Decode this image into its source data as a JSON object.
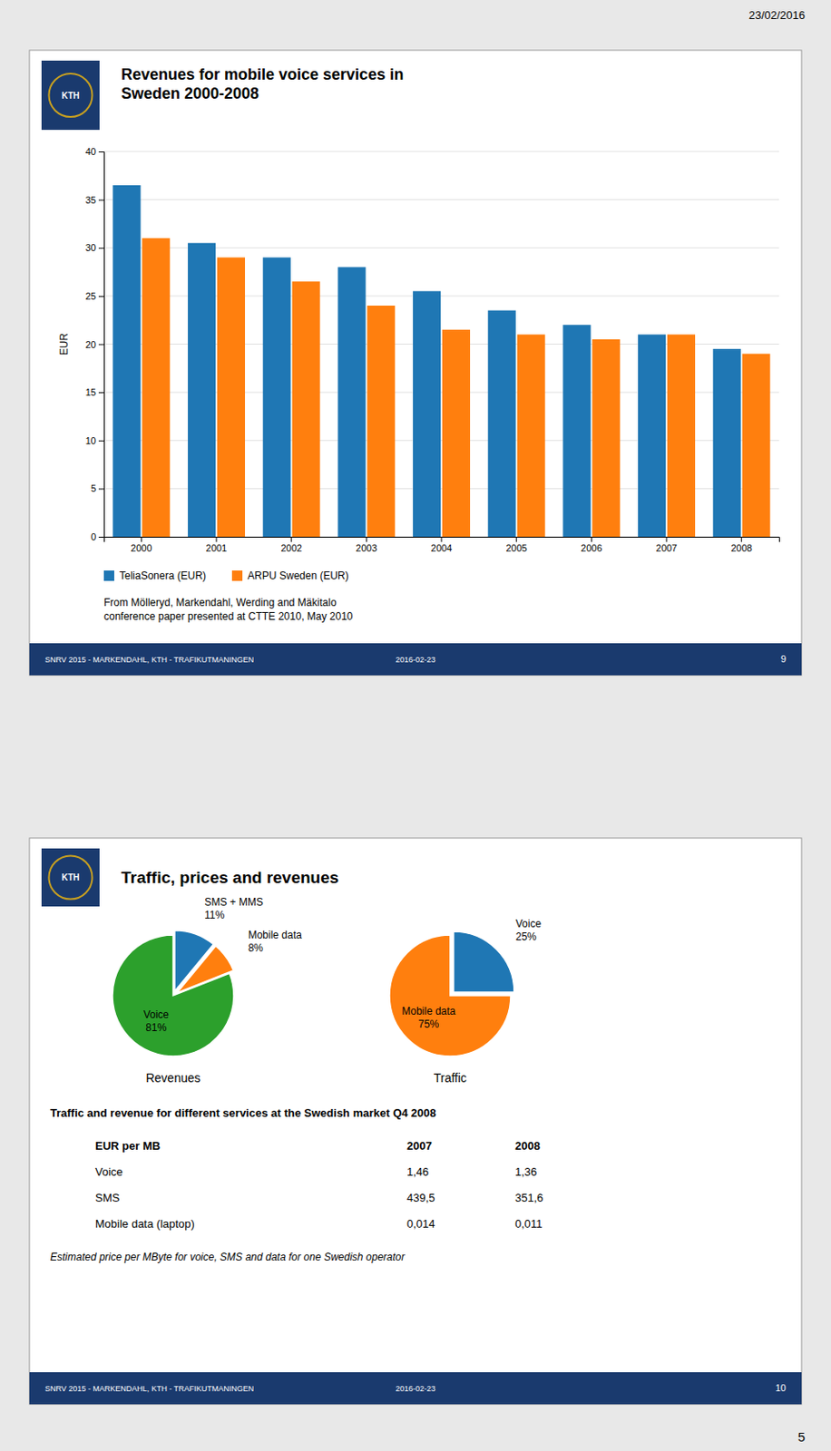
{
  "chart_data": [
    {
      "type": "bar",
      "title": "Revenues for mobile voice services in\nSweden 2000-2008",
      "categories": [
        "2000",
        "2001",
        "2002",
        "2003",
        "2004",
        "2005",
        "2006",
        "2007",
        "2008"
      ],
      "series": [
        {
          "name": "TeliaSonera (EUR)",
          "values": [
            36.5,
            30.5,
            29.0,
            28.0,
            25.5,
            23.5,
            22.0,
            21.0,
            19.5
          ]
        },
        {
          "name": "ARPU Sweden (EUR)",
          "values": [
            31.0,
            29.0,
            26.5,
            24.0,
            21.5,
            21.0,
            20.5,
            21.0,
            19.0
          ]
        }
      ],
      "ylabel": "EUR",
      "ylim": [
        0,
        40
      ],
      "yticks": [
        0,
        5,
        10,
        15,
        20,
        25,
        30,
        35,
        40
      ],
      "grid": true,
      "legend": "bottom"
    },
    {
      "type": "pie",
      "title": "Revenues",
      "categories": [
        "SMS + MMS",
        "Mobile data",
        "Voice"
      ],
      "values": [
        11,
        8,
        81
      ],
      "value_labels": [
        "11%",
        "8%",
        "81%"
      ],
      "data_labels": true
    },
    {
      "type": "pie",
      "title": "Traffic",
      "categories": [
        "Voice",
        "Mobile data"
      ],
      "values": [
        25,
        75
      ],
      "value_labels": [
        "25%",
        "75%"
      ],
      "data_labels": true
    }
  ],
  "page": {
    "date_stamp": "23/02/2016",
    "page_number": "5",
    "slides": [
      {
        "logo": "KTH",
        "source_text": "From Mölleryd, Markendahl, Werding and Mäkitalo\nconference paper presented at CTTE 2010, May 2010",
        "footer": [
          "SNRV 2015 - MARKENDAHL, KTH - TRAFIKUTMANINGEN",
          "2016-02-23",
          "9"
        ]
      },
      {
        "logo": "KTH",
        "title": "Traffic, prices and revenues",
        "subtitle": "Traffic and revenue for different services at the Swedish market Q4 2008",
        "table": {
          "header": [
            "EUR per MB",
            "2007",
            "2008"
          ],
          "rows": [
            [
              "Voice",
              "1,46",
              "1,36"
            ],
            [
              "SMS",
              "439,5",
              "351,6"
            ],
            [
              "Mobile data (laptop)",
              "0,014",
              "0,011"
            ]
          ]
        },
        "table_note": "Estimated price per MByte for voice, SMS and data for one Swedish operator",
        "footer": [
          "SNRV 2015 - MARKENDAHL, KTH - TRAFIKUTMANINGEN",
          "2016-02-23",
          "10"
        ]
      }
    ]
  }
}
